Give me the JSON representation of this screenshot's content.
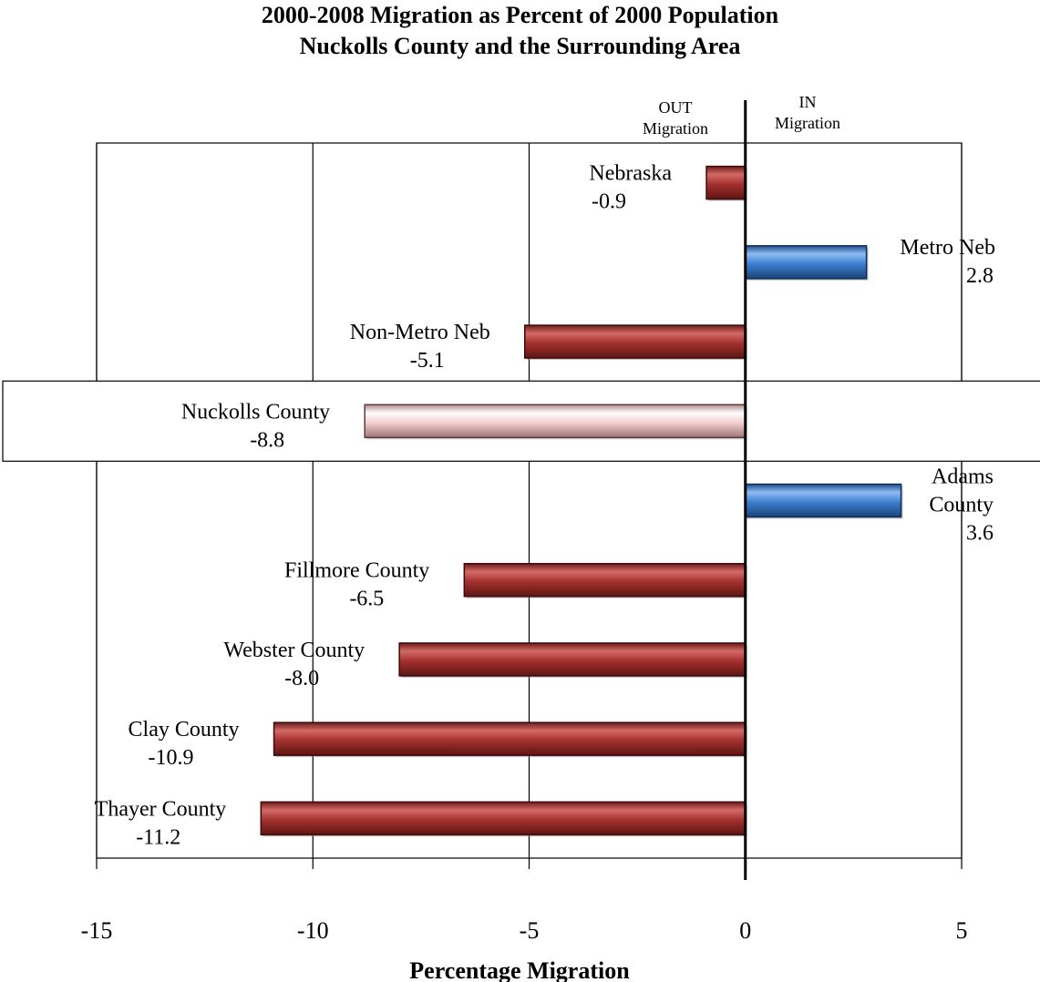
{
  "title_lines": [
    "2000-2008 Migration as Percent of 2000 Population",
    "Nuckolls County and the Surrounding  Area"
  ],
  "direction_labels": {
    "out": [
      "OUT",
      "Migration"
    ],
    "in": [
      "IN",
      "Migration"
    ]
  },
  "colors": {
    "negative": "#a3302e",
    "positive": "#3d7fd0",
    "highlight": "#f2cfd0"
  },
  "chart_data": {
    "type": "bar",
    "orientation": "horizontal",
    "title": "2000-2008 Migration as Percent of 2000 Population Nuckolls County and the Surrounding  Area",
    "xlabel": "Percentage Migration",
    "ylabel": "",
    "xlim": [
      -15,
      5
    ],
    "xticks": [
      -15,
      -10,
      -5,
      0,
      5
    ],
    "grid": "vertical",
    "legend": "none",
    "categories": [
      "Nebraska",
      "Metro Neb",
      "Non-Metro Neb",
      "Nuckolls County",
      "Adams County",
      "Fillmore County",
      "Webster County",
      "Clay County",
      "Thayer County"
    ],
    "label_lines": [
      [
        "Nebraska",
        "-0.9"
      ],
      [
        "Metro Neb",
        "2.8"
      ],
      [
        "Non-Metro Neb",
        "-5.1"
      ],
      [
        "Nuckolls County",
        "-8.8"
      ],
      [
        "Adams",
        "County",
        "3.6"
      ],
      [
        "Fillmore County",
        "-6.5"
      ],
      [
        "Webster County",
        "-8.0"
      ],
      [
        "Clay County",
        "-10.9"
      ],
      [
        "Thayer County",
        "-11.2"
      ]
    ],
    "values": [
      -0.9,
      2.8,
      -5.1,
      -8.8,
      3.6,
      -6.5,
      -8.0,
      -10.9,
      -11.2
    ],
    "highlighted_category": "Nuckolls County"
  }
}
